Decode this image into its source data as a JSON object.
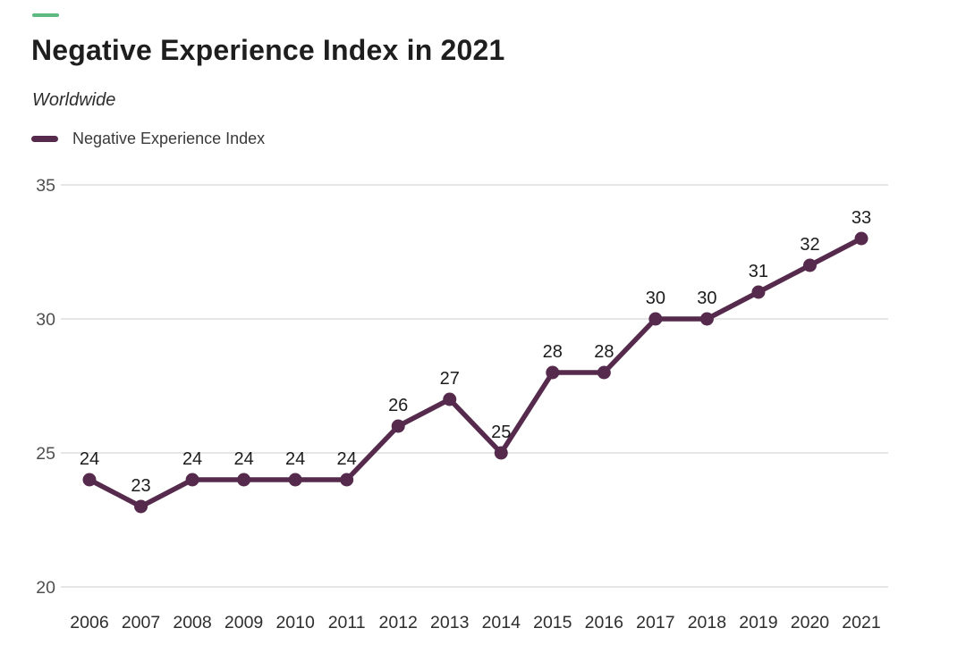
{
  "accent_color": "#5dba80",
  "header": {
    "title": "Negative Experience Index in 2021",
    "subtitle": "Worldwide"
  },
  "legend": {
    "label": "Negative Experience Index",
    "swatch_color": "#552a4c"
  },
  "chart_data": {
    "type": "line",
    "title": "Negative Experience Index in 2021",
    "subtitle": "Worldwide",
    "categories": [
      "2006",
      "2007",
      "2008",
      "2009",
      "2010",
      "2011",
      "2012",
      "2013",
      "2014",
      "2015",
      "2016",
      "2017",
      "2018",
      "2019",
      "2020",
      "2021"
    ],
    "series": [
      {
        "name": "Negative Experience Index",
        "color": "#552a4c",
        "values": [
          24,
          23,
          24,
          24,
          24,
          24,
          26,
          27,
          25,
          28,
          28,
          30,
          30,
          31,
          32,
          33
        ]
      }
    ],
    "ylim": [
      20,
      35
    ],
    "yticks": [
      35,
      30,
      25,
      20
    ],
    "grid": "horizontal",
    "point_labels_shown": true,
    "legend_position": "top-left",
    "colors": {
      "grid": "#cdcdcd",
      "axis_text_y": "#4f4f4f",
      "axis_text_x": "#2e2e2e",
      "data_label": "#1c1c1c"
    }
  }
}
